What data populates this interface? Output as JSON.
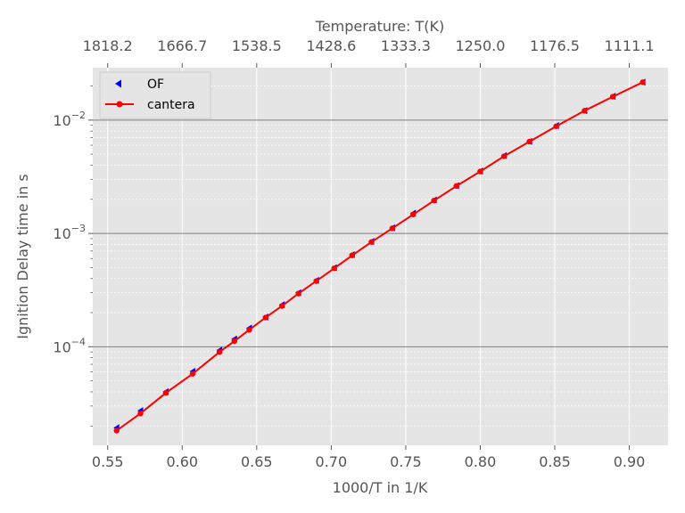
{
  "chart_data": {
    "type": "line",
    "title": "",
    "xlabel": "1000/T in 1/K",
    "ylabel": "Ignition Delay time in s",
    "top_xlabel": "Temperature: T(K)",
    "xlim": [
      0.54,
      0.926
    ],
    "ylim": [
      1.35e-05,
      0.029
    ],
    "yscale": "log",
    "grid": true,
    "legend_position": "upper-left",
    "x_ticks": [
      "0.55",
      "0.60",
      "0.65",
      "0.70",
      "0.75",
      "0.80",
      "0.85",
      "0.90"
    ],
    "y_ticks": [
      {
        "base": "10",
        "exp": "−4"
      },
      {
        "base": "10",
        "exp": "−3"
      },
      {
        "base": "10",
        "exp": "−2"
      }
    ],
    "top_ticks": [
      "1818.2",
      "1666.7",
      "1538.5",
      "1428.6",
      "1333.3",
      "1250.0",
      "1176.5",
      "1111.1"
    ],
    "series": [
      {
        "name": "OF",
        "style": "markers",
        "marker": "triangle-left",
        "color": "#0000ff",
        "x": [
          0.556,
          0.572,
          0.589,
          0.607,
          0.625,
          0.635,
          0.645,
          0.656,
          0.667,
          0.678,
          0.69,
          0.702,
          0.714,
          0.727,
          0.741,
          0.755,
          0.769,
          0.784,
          0.8,
          0.816,
          0.833,
          0.851,
          0.87,
          0.889,
          0.909
        ],
        "y": [
          1.93e-05,
          2.73e-05,
          4.01e-05,
          6.06e-05,
          9.33e-05,
          0.000117,
          0.000146,
          0.000183,
          0.000235,
          0.000299,
          0.000385,
          0.000498,
          0.000649,
          0.00085,
          0.00112,
          0.00151,
          0.00197,
          0.00264,
          0.00355,
          0.00486,
          0.00647,
          0.00895,
          0.0121,
          0.0162,
          0.0216
        ]
      },
      {
        "name": "cantera",
        "style": "line-markers",
        "marker": "circle",
        "color": "#ff0000",
        "x": [
          0.556,
          0.572,
          0.589,
          0.607,
          0.625,
          0.635,
          0.645,
          0.656,
          0.667,
          0.678,
          0.69,
          0.702,
          0.714,
          0.727,
          0.741,
          0.755,
          0.769,
          0.784,
          0.8,
          0.816,
          0.833,
          0.851,
          0.87,
          0.889,
          0.909
        ],
        "y": [
          1.82e-05,
          2.58e-05,
          3.91e-05,
          5.77e-05,
          8.97e-05,
          0.000112,
          0.000141,
          0.000181,
          0.000229,
          0.000295,
          0.00038,
          0.000492,
          0.00064,
          0.00084,
          0.00111,
          0.00147,
          0.00195,
          0.00262,
          0.00352,
          0.0048,
          0.00646,
          0.00883,
          0.0121,
          0.0161,
          0.0216
        ]
      }
    ]
  }
}
